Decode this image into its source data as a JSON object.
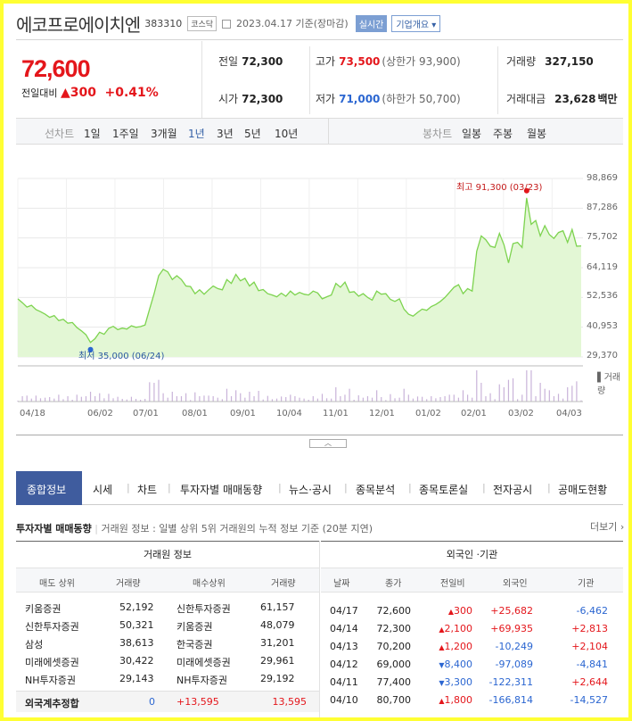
{
  "header": {
    "name": "에코프로에이치엔",
    "code": "383310",
    "market": "코스닥",
    "date": "2023.04.17 기준(장마감)",
    "realtime": "실시간",
    "corp_info": "기업개요 ▾"
  },
  "price": {
    "current": "72,600",
    "change_label": "전일대비",
    "change_arrow": "▲",
    "change": "300",
    "change_pct": "+0.41%"
  },
  "stats": [
    {
      "label": "전일",
      "value": "72,300",
      "sub": ""
    },
    {
      "label": "고가",
      "value": "73,500",
      "sub": "(상한가 93,900)"
    },
    {
      "label": "거래량",
      "value": "327,150",
      "sub": ""
    },
    {
      "label": "시가",
      "value": "72,300",
      "sub": ""
    },
    {
      "label": "저가",
      "value": "71,000",
      "sub": "(하한가 50,700)"
    },
    {
      "label": "거래대금",
      "value": "23,628",
      "sub": "백만"
    }
  ],
  "period_bar": {
    "line_label": "선차트",
    "line_periods": [
      "1일",
      "1주일",
      "3개월",
      "1년",
      "3년",
      "5년",
      "10년"
    ],
    "selected": "1년",
    "candle_label": "봉차트",
    "candle_periods": [
      "일봉",
      "주봉",
      "월봉"
    ]
  },
  "chart_data": {
    "type": "area",
    "x_ticks": [
      "04/18",
      "06/02",
      "07/01",
      "08/01",
      "09/01",
      "10/04",
      "11/01",
      "12/01",
      "01/02",
      "02/01",
      "03/02",
      "04/03"
    ],
    "y_ticks": [
      "98,869",
      "87,286",
      "75,702",
      "64,119",
      "52,536",
      "40,953",
      "29,370"
    ],
    "ylim": [
      29370,
      98869
    ],
    "volume_label": "▌거래량",
    "high_label": "최고 91,300 (03/23)",
    "low_label": "최저 35,000 (06/24)",
    "high": 91300,
    "low": 35000,
    "series": [
      {
        "values": [
          52000,
          50500,
          48800,
          49500,
          47800,
          47000,
          46000,
          44800,
          45500,
          43500,
          44000,
          42500,
          42800,
          40800,
          39500,
          38000,
          35000,
          36500,
          39000,
          38200,
          40500,
          41300,
          40000,
          40600,
          40200,
          41500,
          40900,
          41200,
          41800,
          48000,
          54000,
          61000,
          63500,
          62500,
          59500,
          61000,
          59500,
          57000,
          56800,
          54000,
          55500,
          53800,
          55500,
          57000,
          56000,
          55500,
          59500,
          58000,
          61500,
          59000,
          60000,
          57000,
          58500,
          55200,
          55600,
          54000,
          53500,
          52800,
          54200,
          53000,
          55000,
          53500,
          54500,
          53800,
          53500,
          55000,
          54300,
          52000,
          52800,
          53500,
          58000,
          56500,
          58500,
          54500,
          54800,
          53000,
          54000,
          52500,
          51500,
          55000,
          53800,
          54000,
          51800,
          51000,
          52000,
          48000,
          46000,
          45300,
          46700,
          48000,
          47500,
          49000,
          49800,
          51000,
          52500,
          54500,
          56500,
          57500,
          54000,
          56000,
          55000,
          70500,
          76500,
          75000,
          72500,
          72000,
          77500,
          73000,
          66000,
          73500,
          74000,
          72000,
          91300,
          81000,
          82500,
          76500,
          80500,
          77000,
          75500,
          77800,
          78500,
          74000,
          79000,
          72500,
          72600
        ]
      }
    ]
  },
  "tabs": [
    "종합정보",
    "시세",
    "차트",
    "투자자별 매매동향",
    "뉴스·공시",
    "종목분석",
    "종목토론실",
    "전자공시",
    "공매도현황"
  ],
  "investor": {
    "title": "투자자별 매매동향",
    "subtitle": "거래원 정보 : 일별 상위 5위 거래원의 누적 정보 기준 (20분 지연)",
    "more": "더보기 ›",
    "left_group": "거래원 정보",
    "right_group": "외국인 ·기관",
    "left_cols": [
      "매도 상위",
      "거래량",
      "매수상위",
      "거래량"
    ],
    "right_cols": [
      "날짜",
      "종가",
      "전일비",
      "외국인",
      "기관"
    ],
    "brokers": [
      [
        "키움증권",
        "52,192",
        "신한투자증권",
        "61,157"
      ],
      [
        "신한투자증권",
        "50,321",
        "키움증권",
        "48,079"
      ],
      [
        "삼성",
        "38,613",
        "한국증권",
        "31,201"
      ],
      [
        "미래에셋증권",
        "30,422",
        "미래에셋증권",
        "29,961"
      ],
      [
        "NH투자증권",
        "29,143",
        "NH투자증권",
        "29,192"
      ]
    ],
    "foreign_total": {
      "label": "외국계추정합",
      "sell": "0",
      "diff": "+13,595",
      "buy": "13,595"
    },
    "daily": [
      {
        "date": "04/17",
        "close": "72,600",
        "dir": "up",
        "diff": "300",
        "foreign": "+25,682",
        "inst": "-6,462"
      },
      {
        "date": "04/14",
        "close": "72,300",
        "dir": "up",
        "diff": "2,100",
        "foreign": "+69,935",
        "inst": "+2,813"
      },
      {
        "date": "04/13",
        "close": "70,200",
        "dir": "up",
        "diff": "1,200",
        "foreign": "-10,249",
        "inst": "+2,104"
      },
      {
        "date": "04/12",
        "close": "69,000",
        "dir": "down",
        "diff": "8,400",
        "foreign": "-97,089",
        "inst": "-4,841"
      },
      {
        "date": "04/11",
        "close": "77,400",
        "dir": "down",
        "diff": "3,300",
        "foreign": "-122,311",
        "inst": "+2,644"
      },
      {
        "date": "04/10",
        "close": "80,700",
        "dir": "up",
        "diff": "1,800",
        "foreign": "-166,814",
        "inst": "-14,527"
      }
    ]
  }
}
